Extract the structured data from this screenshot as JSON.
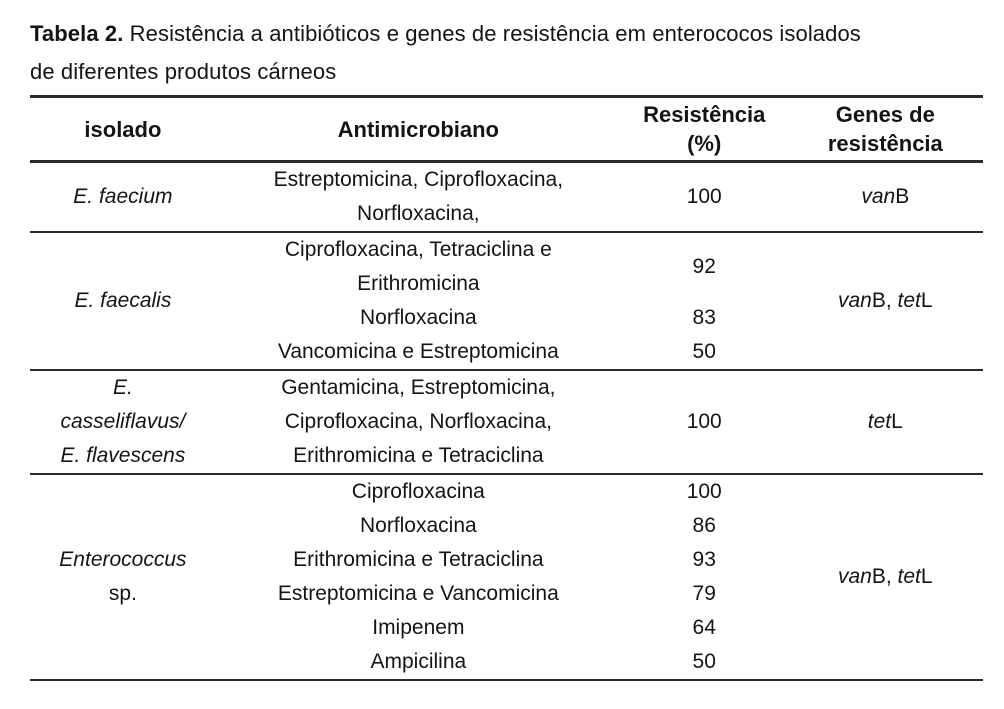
{
  "title": {
    "label": "Tabela 2.",
    "text": " Resistência a antibióticos e genes de resistência em enterococos isolados\nde diferentes produtos cárneos"
  },
  "table": {
    "headers": [
      "isolado",
      "Antimicrobiano",
      "Resistência\n(%)",
      "Genes de\nresistência"
    ],
    "sections": [
      {
        "isolate": [
          {
            "t": "E. faecium",
            "i": true
          }
        ],
        "genes": [
          {
            "t": "van",
            "i": true
          },
          {
            "t": "B",
            "i": false
          }
        ],
        "rows": [
          {
            "antimicrobial": "Estreptomicina, Ciprofloxacina,\nNorfloxacina,",
            "resistance": "100"
          }
        ]
      },
      {
        "isolate": [
          {
            "t": "E. faecalis",
            "i": true
          }
        ],
        "genes": [
          {
            "t": "van",
            "i": true
          },
          {
            "t": "B, ",
            "i": false
          },
          {
            "t": "tet",
            "i": true
          },
          {
            "t": "L",
            "i": false
          }
        ],
        "rows": [
          {
            "antimicrobial": "Ciprofloxacina, Tetraciclina e\nErithromicina",
            "resistance": "92"
          },
          {
            "antimicrobial": "Norfloxacina",
            "resistance": "83"
          },
          {
            "antimicrobial": "Vancomicina e Estreptomicina",
            "resistance": "50"
          }
        ]
      },
      {
        "isolate": [
          {
            "t": "E.\ncasseliflavus/\nE. flavescens",
            "i": true
          }
        ],
        "genes": [
          {
            "t": "tet",
            "i": true
          },
          {
            "t": "L",
            "i": false
          }
        ],
        "rows": [
          {
            "antimicrobial": "Gentamicina, Estreptomicina,\nCiprofloxacina, Norfloxacina,\nErithromicina e Tetraciclina",
            "resistance": "100"
          }
        ]
      },
      {
        "isolate": [
          {
            "t": "Enterococcus",
            "i": true
          },
          {
            "t": "\nsp.",
            "i": false
          }
        ],
        "genes": [
          {
            "t": "van",
            "i": true
          },
          {
            "t": "B, ",
            "i": false
          },
          {
            "t": "tet",
            "i": true
          },
          {
            "t": "L",
            "i": false
          }
        ],
        "rows": [
          {
            "antimicrobial": "Ciprofloxacina",
            "resistance": "100"
          },
          {
            "antimicrobial": "Norfloxacina",
            "resistance": "86"
          },
          {
            "antimicrobial": "Erithromicina e Tetraciclina",
            "resistance": "93"
          },
          {
            "antimicrobial": "Estreptomicina e Vancomicina",
            "resistance": "79"
          },
          {
            "antimicrobial": "Imipenem",
            "resistance": "64"
          },
          {
            "antimicrobial": "Ampicilina",
            "resistance": "50"
          }
        ]
      }
    ]
  }
}
